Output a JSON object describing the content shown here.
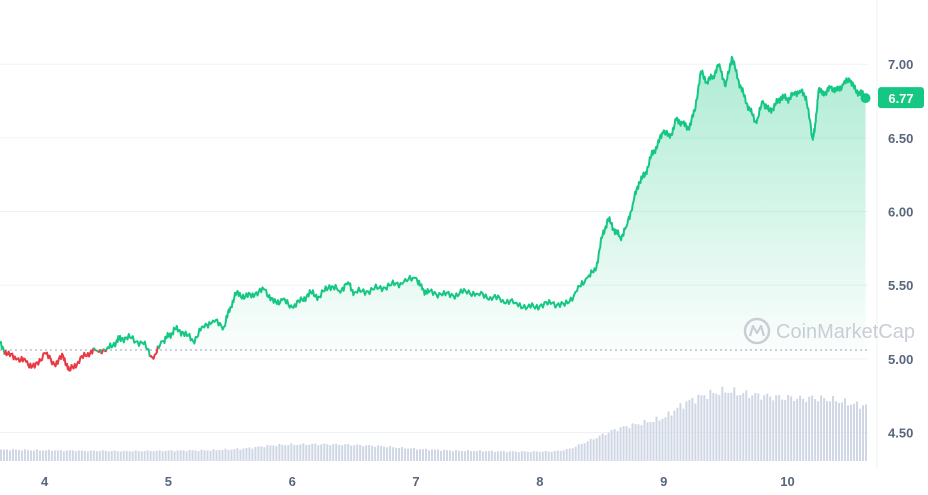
{
  "watermark": "CoinMarketCap",
  "chart_data": {
    "type": "line",
    "current_price_label": "6.77",
    "current_price": 6.77,
    "baseline": 5.06,
    "ylim": [
      4.3,
      7.3
    ],
    "y_ticks": [
      {
        "value": 4.5,
        "label": "4.50"
      },
      {
        "value": 5.0,
        "label": "5.00"
      },
      {
        "value": 5.5,
        "label": "5.50"
      },
      {
        "value": 6.0,
        "label": "6.00"
      },
      {
        "value": 6.5,
        "label": "6.50"
      },
      {
        "value": 7.0,
        "label": "7.00"
      }
    ],
    "x_ticks": [
      "4",
      "5",
      "6",
      "7",
      "8",
      "9",
      "10"
    ],
    "xlim": [
      3.64,
      10.65
    ],
    "colors": {
      "up": "#16c784",
      "down": "#ea3943",
      "volume": "#cfd6e4",
      "grid": "#eff2f5",
      "badge": "#16c784"
    },
    "series": [
      {
        "x": [
          3.64,
          3.7,
          3.78,
          3.85,
          3.92,
          4.0,
          4.08,
          4.15,
          4.2,
          4.27,
          4.35,
          4.42,
          4.5,
          4.58,
          4.62,
          4.7,
          4.8,
          4.88,
          4.95,
          5.0,
          5.05,
          5.12,
          5.2,
          5.28,
          5.36,
          5.45,
          5.5,
          5.55,
          5.62,
          5.7,
          5.78,
          5.85,
          5.92,
          6.0,
          6.08,
          6.15,
          6.22,
          6.3,
          6.38,
          6.45,
          6.5,
          6.6,
          6.7,
          6.8,
          6.9,
          7.0,
          7.05,
          7.1,
          7.2,
          7.3,
          7.4,
          7.5,
          7.6,
          7.7,
          7.8,
          7.9,
          8.0,
          8.1,
          8.2,
          8.3,
          8.38,
          8.45,
          8.5,
          8.55,
          8.6,
          8.65,
          8.7,
          8.75,
          8.8,
          8.85,
          8.9,
          8.95,
          9.0,
          9.05,
          9.1,
          9.15,
          9.2,
          9.25,
          9.3,
          9.35,
          9.4,
          9.45,
          9.5,
          9.55,
          9.6,
          9.65,
          9.7,
          9.75,
          9.8,
          9.85,
          9.9,
          9.95,
          10.0,
          10.05,
          10.1,
          10.15,
          10.2,
          10.22,
          10.25,
          10.3,
          10.35,
          10.4,
          10.45,
          10.5,
          10.55,
          10.6,
          10.63
        ],
        "y": [
          5.1,
          5.03,
          5.0,
          4.98,
          4.94,
          5.04,
          4.96,
          5.02,
          4.92,
          4.98,
          5.04,
          5.06,
          5.06,
          5.12,
          5.14,
          5.14,
          5.1,
          5.0,
          5.12,
          5.15,
          5.2,
          5.18,
          5.12,
          5.22,
          5.26,
          5.22,
          5.35,
          5.45,
          5.42,
          5.44,
          5.47,
          5.38,
          5.4,
          5.35,
          5.4,
          5.45,
          5.42,
          5.5,
          5.46,
          5.52,
          5.45,
          5.46,
          5.48,
          5.5,
          5.52,
          5.55,
          5.47,
          5.45,
          5.44,
          5.43,
          5.46,
          5.44,
          5.42,
          5.4,
          5.38,
          5.35,
          5.36,
          5.38,
          5.36,
          5.46,
          5.55,
          5.6,
          5.82,
          5.95,
          5.88,
          5.82,
          5.9,
          6.05,
          6.2,
          6.25,
          6.38,
          6.45,
          6.55,
          6.5,
          6.62,
          6.6,
          6.56,
          6.68,
          6.95,
          6.88,
          6.92,
          7.0,
          6.85,
          7.05,
          6.9,
          6.78,
          6.68,
          6.6,
          6.75,
          6.68,
          6.72,
          6.78,
          6.76,
          6.8,
          6.82,
          6.78,
          6.5,
          6.55,
          6.82,
          6.8,
          6.84,
          6.82,
          6.86,
          6.9,
          6.82,
          6.8,
          6.77
        ]
      }
    ],
    "volume": [
      0.5,
      0.5,
      0.49,
      0.48,
      0.47,
      0.47,
      0.46,
      0.46,
      0.45,
      0.45,
      0.45,
      0.44,
      0.44,
      0.44,
      0.45,
      0.45,
      0.46,
      0.46,
      0.47,
      0.47,
      0.48,
      0.5,
      0.52,
      0.55,
      0.6,
      0.66,
      0.7,
      0.72,
      0.73,
      0.74,
      0.74,
      0.74,
      0.73,
      0.72,
      0.7,
      0.68,
      0.66,
      0.62,
      0.58,
      0.55,
      0.52,
      0.5,
      0.48,
      0.46,
      0.45,
      0.45,
      0.44,
      0.43,
      0.42,
      0.42,
      0.42,
      0.42,
      0.42,
      0.45,
      0.55,
      0.75,
      0.95,
      1.15,
      1.35,
      1.5,
      1.6,
      1.7,
      1.8,
      1.95,
      2.3,
      2.6,
      2.8,
      2.95,
      3.05,
      3.1,
      3.0,
      2.95,
      2.9,
      2.85,
      2.8,
      2.8,
      2.75,
      2.8,
      2.75,
      2.7,
      2.6,
      2.5,
      2.45
    ],
    "volume_max": 3.1
  }
}
